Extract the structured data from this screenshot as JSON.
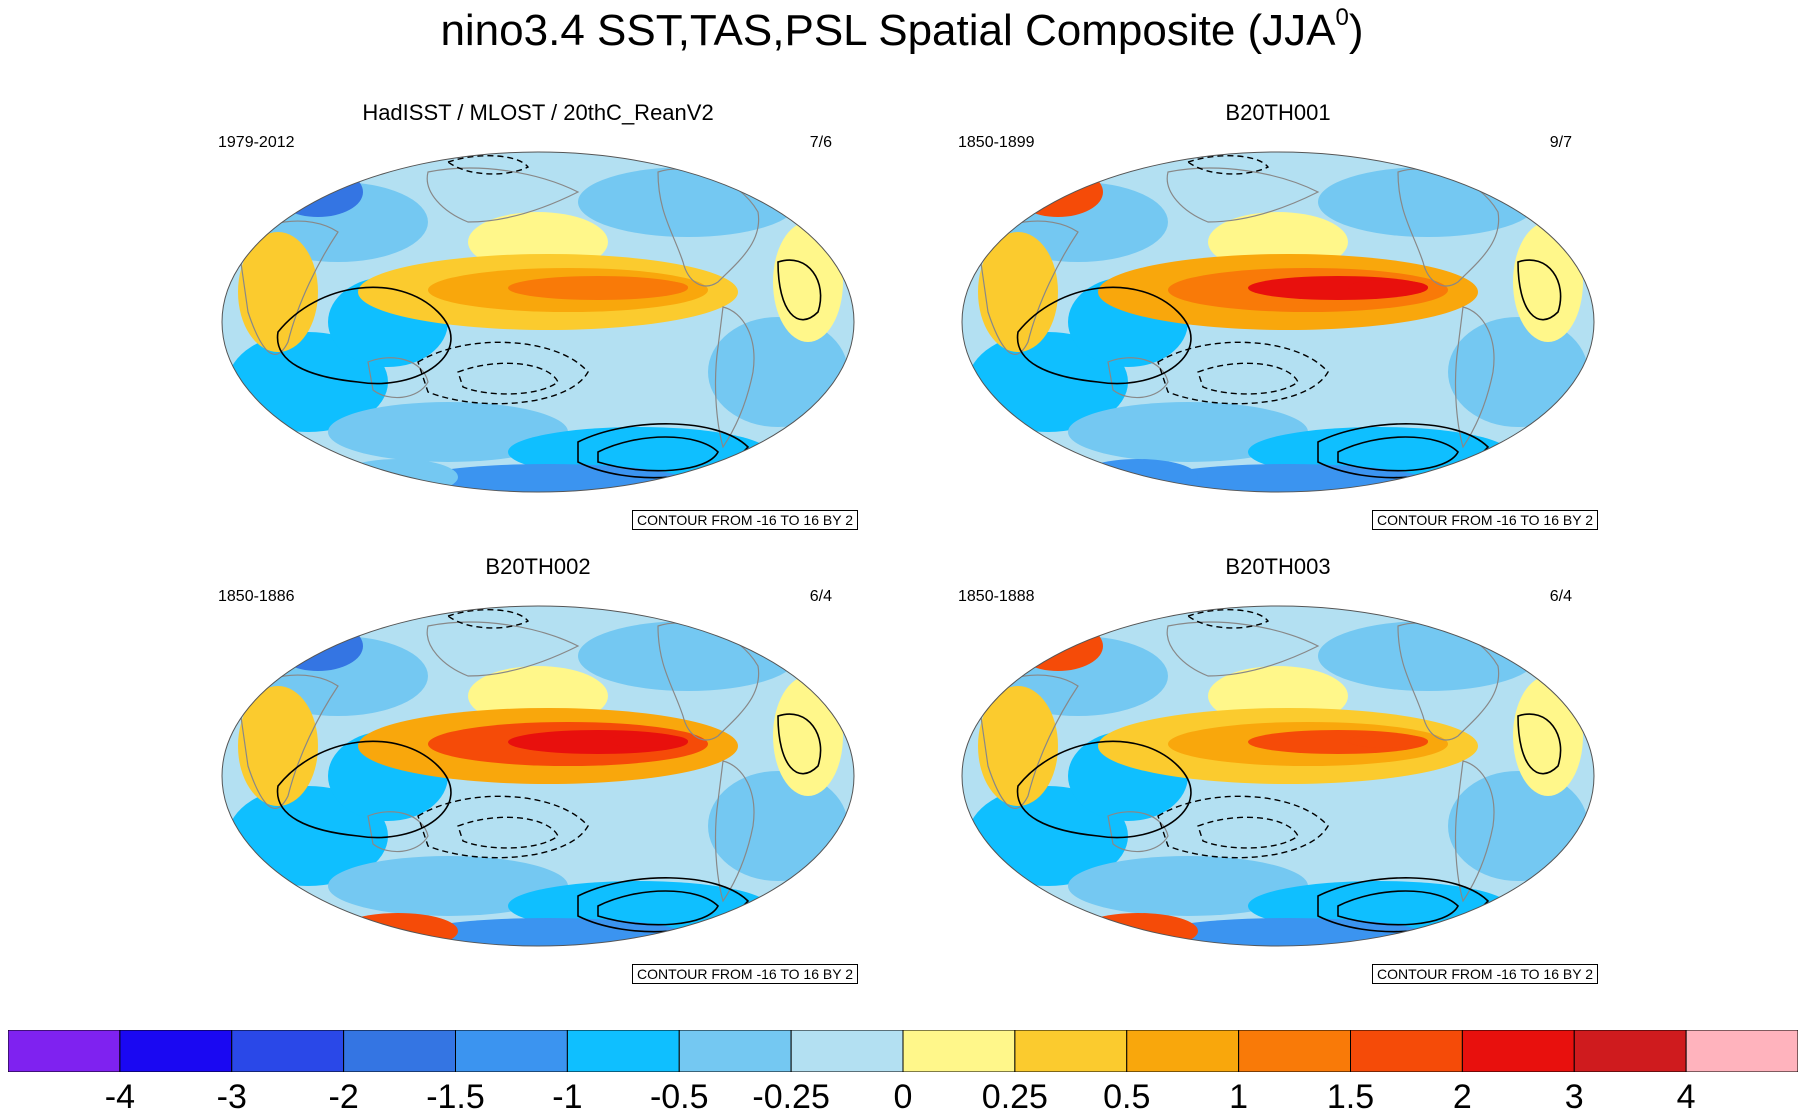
{
  "title": {
    "main": "nino3.4 SST,TAS,PSL Spatial Composite (JJA",
    "superscript": "0",
    "close": ")"
  },
  "panels": [
    {
      "title": "HadISST / MLOST / 20thC_ReanV2",
      "period": "1979-2012",
      "ratio": "7/6",
      "contour_note": "CONTOUR FROM -16 TO 16 BY 2"
    },
    {
      "title": "B20TH001",
      "period": "1850-1899",
      "ratio": "9/7",
      "contour_note": "CONTOUR FROM -16 TO 16 BY 2"
    },
    {
      "title": "B20TH002",
      "period": "1850-1886",
      "ratio": "6/4",
      "contour_note": "CONTOUR FROM -16 TO 16 BY 2"
    },
    {
      "title": "B20TH003",
      "period": "1850-1888",
      "ratio": "6/4",
      "contour_note": "CONTOUR FROM -16 TO 16 BY 2"
    }
  ],
  "colorbar": {
    "colors": [
      "#7f22f0",
      "#1a08f2",
      "#2a48e8",
      "#3475e3",
      "#3b94f0",
      "#0fbfff",
      "#74c8f2",
      "#b3e0f2",
      "#fff78a",
      "#fbcb2e",
      "#f9a70c",
      "#f97a08",
      "#f54b08",
      "#e8100d",
      "#cf1b1e",
      "#ffb3bd"
    ],
    "labels": [
      "-4",
      "-3",
      "-2",
      "-1.5",
      "-1",
      "-0.5",
      "-0.25",
      "0",
      "0.25",
      "0.5",
      "1",
      "1.5",
      "2",
      "3",
      "4"
    ]
  },
  "icons": {
    "map_projection": "robinson-globe-icon"
  }
}
